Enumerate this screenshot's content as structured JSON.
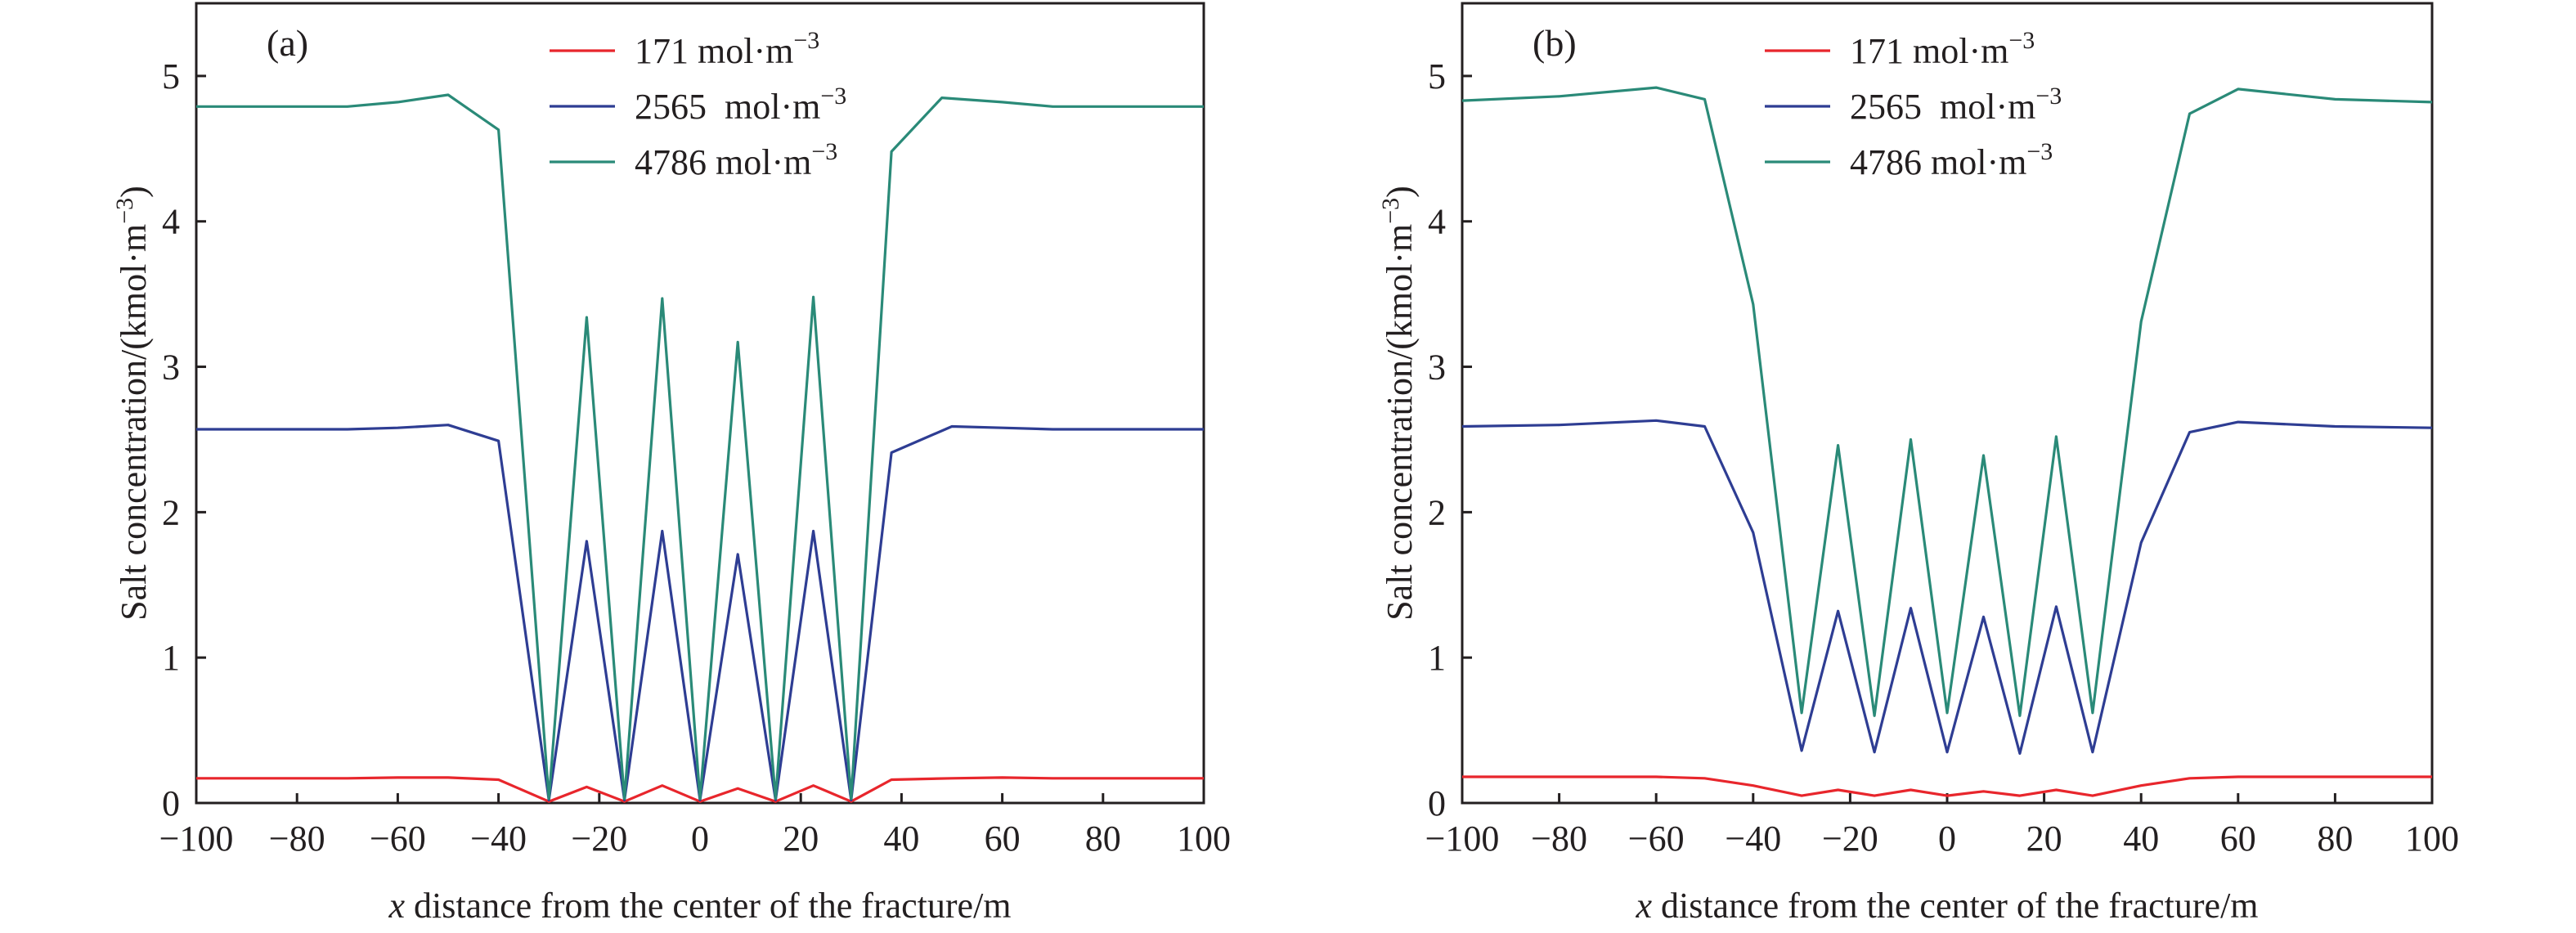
{
  "chart_data": [
    {
      "type": "line",
      "panel_label": "(a)",
      "xlabel": {
        "italic": "x",
        "rest": " distance from the center of the fracture/m"
      },
      "ylabel": {
        "main": "Salt concentration/(kmol·m",
        "sup": "−3",
        "close": ")"
      },
      "xlim": [
        -100,
        100
      ],
      "ylim": [
        0,
        5.5
      ],
      "xticks": [
        "−100",
        "−80",
        "−60",
        "−40",
        "−20",
        "0",
        "20",
        "40",
        "60",
        "80",
        "100"
      ],
      "xtick_values": [
        -100,
        -80,
        -60,
        -40,
        -20,
        0,
        20,
        40,
        60,
        80,
        100
      ],
      "yticks": [
        "0",
        "1",
        "2",
        "3",
        "4",
        "5"
      ],
      "ytick_values": [
        0,
        1,
        2,
        3,
        4,
        5
      ],
      "legend_position": "top-center",
      "series": [
        {
          "name": "171 mol·m",
          "sup": "−3",
          "color": "#e8262c",
          "points": [
            [
              -100,
              0.17
            ],
            [
              -70,
              0.17
            ],
            [
              -60,
              0.175
            ],
            [
              -50,
              0.175
            ],
            [
              -40,
              0.16
            ],
            [
              -30,
              0.01
            ],
            [
              -22.5,
              0.11
            ],
            [
              -15,
              0.01
            ],
            [
              -7.5,
              0.12
            ],
            [
              0,
              0.01
            ],
            [
              7.5,
              0.1
            ],
            [
              15,
              0.01
            ],
            [
              22.5,
              0.12
            ],
            [
              30,
              0.01
            ],
            [
              38,
              0.16
            ],
            [
              50,
              0.17
            ],
            [
              60,
              0.175
            ],
            [
              70,
              0.17
            ],
            [
              100,
              0.17
            ]
          ]
        },
        {
          "name": "2565  mol·m",
          "sup": "−3",
          "color": "#2e3d93",
          "points": [
            [
              -100,
              2.57
            ],
            [
              -70,
              2.57
            ],
            [
              -60,
              2.58
            ],
            [
              -50,
              2.6
            ],
            [
              -40,
              2.49
            ],
            [
              -30,
              0.02
            ],
            [
              -22.5,
              1.8
            ],
            [
              -15,
              0.02
            ],
            [
              -7.5,
              1.87
            ],
            [
              0,
              0.02
            ],
            [
              7.5,
              1.71
            ],
            [
              15,
              0.02
            ],
            [
              22.5,
              1.87
            ],
            [
              30,
              0.02
            ],
            [
              38,
              2.41
            ],
            [
              50,
              2.59
            ],
            [
              60,
              2.58
            ],
            [
              70,
              2.57
            ],
            [
              100,
              2.57
            ]
          ]
        },
        {
          "name": "4786 mol·m",
          "sup": "−3",
          "color": "#2a8a78",
          "points": [
            [
              -100,
              4.79
            ],
            [
              -70,
              4.79
            ],
            [
              -60,
              4.82
            ],
            [
              -50,
              4.87
            ],
            [
              -40,
              4.63
            ],
            [
              -30,
              0.03
            ],
            [
              -22.5,
              3.34
            ],
            [
              -15,
              0.03
            ],
            [
              -7.5,
              3.47
            ],
            [
              0,
              0.03
            ],
            [
              7.5,
              3.17
            ],
            [
              15,
              0.03
            ],
            [
              22.5,
              3.48
            ],
            [
              30,
              0.03
            ],
            [
              38,
              4.48
            ],
            [
              48,
              4.85
            ],
            [
              60,
              4.82
            ],
            [
              70,
              4.79
            ],
            [
              100,
              4.79
            ]
          ]
        }
      ]
    },
    {
      "type": "line",
      "panel_label": "(b)",
      "xlabel": {
        "italic": "x",
        "rest": " distance from the center of the fracture/m"
      },
      "ylabel": {
        "main": "Salt concentration/(kmol·m",
        "sup": "−3",
        "close": ")"
      },
      "xlim": [
        -100,
        100
      ],
      "ylim": [
        0,
        5.5
      ],
      "xticks": [
        "−100",
        "−80",
        "−60",
        "−40",
        "−20",
        "0",
        "20",
        "40",
        "60",
        "80",
        "100"
      ],
      "xtick_values": [
        -100,
        -80,
        -60,
        -40,
        -20,
        0,
        20,
        40,
        60,
        80,
        100
      ],
      "yticks": [
        "0",
        "1",
        "2",
        "3",
        "4",
        "5"
      ],
      "ytick_values": [
        0,
        1,
        2,
        3,
        4,
        5
      ],
      "legend_position": "top-center",
      "series": [
        {
          "name": "171 mol·m",
          "sup": "−3",
          "color": "#e8262c",
          "points": [
            [
              -100,
              0.18
            ],
            [
              -60,
              0.18
            ],
            [
              -50,
              0.17
            ],
            [
              -40,
              0.12
            ],
            [
              -30,
              0.05
            ],
            [
              -22.5,
              0.09
            ],
            [
              -15,
              0.05
            ],
            [
              -7.5,
              0.09
            ],
            [
              0,
              0.05
            ],
            [
              7.5,
              0.08
            ],
            [
              15,
              0.05
            ],
            [
              22.5,
              0.09
            ],
            [
              30,
              0.05
            ],
            [
              40,
              0.12
            ],
            [
              50,
              0.17
            ],
            [
              60,
              0.18
            ],
            [
              100,
              0.18
            ]
          ]
        },
        {
          "name": "2565  mol·m",
          "sup": "−3",
          "color": "#2e3d93",
          "points": [
            [
              -100,
              2.59
            ],
            [
              -80,
              2.6
            ],
            [
              -60,
              2.63
            ],
            [
              -50,
              2.59
            ],
            [
              -40,
              1.86
            ],
            [
              -30,
              0.36
            ],
            [
              -22.5,
              1.32
            ],
            [
              -15,
              0.35
            ],
            [
              -7.5,
              1.34
            ],
            [
              0,
              0.35
            ],
            [
              7.5,
              1.28
            ],
            [
              15,
              0.34
            ],
            [
              22.5,
              1.35
            ],
            [
              30,
              0.35
            ],
            [
              40,
              1.79
            ],
            [
              50,
              2.55
            ],
            [
              60,
              2.62
            ],
            [
              80,
              2.59
            ],
            [
              100,
              2.58
            ]
          ]
        },
        {
          "name": "4786 mol·m",
          "sup": "−3",
          "color": "#2a8a78",
          "points": [
            [
              -100,
              4.83
            ],
            [
              -80,
              4.86
            ],
            [
              -60,
              4.92
            ],
            [
              -50,
              4.84
            ],
            [
              -40,
              3.43
            ],
            [
              -30,
              0.62
            ],
            [
              -22.5,
              2.46
            ],
            [
              -15,
              0.6
            ],
            [
              -7.5,
              2.5
            ],
            [
              0,
              0.62
            ],
            [
              7.5,
              2.39
            ],
            [
              15,
              0.6
            ],
            [
              22.5,
              2.52
            ],
            [
              30,
              0.62
            ],
            [
              40,
              3.31
            ],
            [
              50,
              4.74
            ],
            [
              60,
              4.91
            ],
            [
              80,
              4.84
            ],
            [
              100,
              4.82
            ]
          ]
        }
      ]
    }
  ]
}
